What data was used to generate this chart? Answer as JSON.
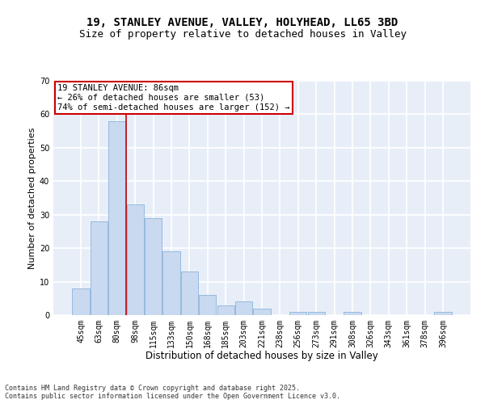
{
  "title_line1": "19, STANLEY AVENUE, VALLEY, HOLYHEAD, LL65 3BD",
  "title_line2": "Size of property relative to detached houses in Valley",
  "xlabel": "Distribution of detached houses by size in Valley",
  "ylabel": "Number of detached properties",
  "categories": [
    "45sqm",
    "63sqm",
    "80sqm",
    "98sqm",
    "115sqm",
    "133sqm",
    "150sqm",
    "168sqm",
    "185sqm",
    "203sqm",
    "221sqm",
    "238sqm",
    "256sqm",
    "273sqm",
    "291sqm",
    "308sqm",
    "326sqm",
    "343sqm",
    "361sqm",
    "378sqm",
    "396sqm"
  ],
  "values": [
    8,
    28,
    58,
    33,
    29,
    19,
    13,
    6,
    3,
    4,
    2,
    0,
    1,
    1,
    0,
    1,
    0,
    0,
    0,
    0,
    1
  ],
  "bar_color": "#c9d9f0",
  "bar_edge_color": "#7aaad4",
  "background_color": "#e8eef8",
  "grid_color": "#ffffff",
  "ylim": [
    0,
    70
  ],
  "yticks": [
    0,
    10,
    20,
    30,
    40,
    50,
    60,
    70
  ],
  "red_line_index": 2,
  "annotation_line1": "19 STANLEY AVENUE: 86sqm",
  "annotation_line2": "← 26% of detached houses are smaller (53)",
  "annotation_line3": "74% of semi-detached houses are larger (152) →",
  "annotation_box_color": "#ffffff",
  "annotation_box_edge_color": "#cc0000",
  "footer_text": "Contains HM Land Registry data © Crown copyright and database right 2025.\nContains public sector information licensed under the Open Government Licence v3.0.",
  "title_fontsize": 10,
  "subtitle_fontsize": 9,
  "tick_fontsize": 7,
  "xlabel_fontsize": 8.5,
  "ylabel_fontsize": 8,
  "annotation_fontsize": 7.5,
  "footer_fontsize": 6
}
